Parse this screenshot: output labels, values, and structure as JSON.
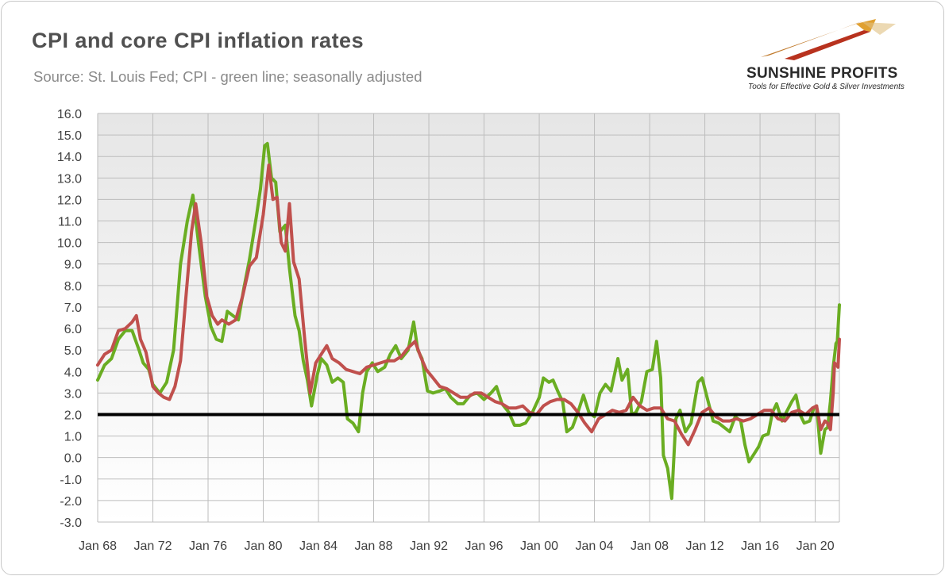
{
  "header": {
    "title": "CPI and core CPI inflation rates",
    "subtitle": "Source: St. Louis Fed; CPI - green line; seasonally adjusted"
  },
  "logo": {
    "name": "SUNSHINE PROFITS",
    "tagline": "Tools for Effective Gold & Silver Investments"
  },
  "chart_data": {
    "type": "line",
    "title": "CPI and core CPI inflation rates",
    "xlabel": "",
    "ylabel": "",
    "xlim": [
      1968.0,
      2021.75
    ],
    "ylim": [
      -3.0,
      16.0
    ],
    "grid": true,
    "legend": "none",
    "x_tick_labels": [
      "Jan 68",
      "Jan 72",
      "Jan 76",
      "Jan 80",
      "Jan 84",
      "Jan 88",
      "Jan 92",
      "Jan 96",
      "Jan 00",
      "Jan 04",
      "Jan 08",
      "Jan 12",
      "Jan 16",
      "Jan 20"
    ],
    "x_tick_values": [
      1968,
      1972,
      1976,
      1980,
      1984,
      1988,
      1992,
      1996,
      2000,
      2004,
      2008,
      2012,
      2016,
      2020
    ],
    "y_tick_labels": [
      "16.0",
      "15.0",
      "14.0",
      "13.0",
      "12.0",
      "11.0",
      "10.0",
      "9.0",
      "8.0",
      "7.0",
      "6.0",
      "5.0",
      "4.0",
      "3.0",
      "2.0",
      "1.0",
      "0.0",
      "-1.0",
      "-2.0",
      "-3.0"
    ],
    "y_tick_values": [
      16,
      15,
      14,
      13,
      12,
      11,
      10,
      9,
      8,
      7,
      6,
      5,
      4,
      3,
      2,
      1,
      0,
      -1,
      -2,
      -3
    ],
    "reference_line": {
      "value": 2.0,
      "color": "#000000"
    },
    "series": [
      {
        "color": "#6aad22",
        "points": [
          [
            1968.0,
            3.6
          ],
          [
            1968.5,
            4.3
          ],
          [
            1969.0,
            4.6
          ],
          [
            1969.5,
            5.5
          ],
          [
            1970.0,
            5.9
          ],
          [
            1970.5,
            5.9
          ],
          [
            1971.0,
            5.0
          ],
          [
            1971.3,
            4.4
          ],
          [
            1971.7,
            4.1
          ],
          [
            1972.0,
            3.4
          ],
          [
            1972.5,
            3.0
          ],
          [
            1973.0,
            3.5
          ],
          [
            1973.5,
            5.0
          ],
          [
            1974.0,
            9.0
          ],
          [
            1974.5,
            11.0
          ],
          [
            1974.9,
            12.2
          ],
          [
            1975.3,
            10.0
          ],
          [
            1975.8,
            7.5
          ],
          [
            1976.2,
            6.1
          ],
          [
            1976.6,
            5.5
          ],
          [
            1977.0,
            5.4
          ],
          [
            1977.4,
            6.8
          ],
          [
            1977.8,
            6.6
          ],
          [
            1978.2,
            6.4
          ],
          [
            1978.6,
            7.9
          ],
          [
            1979.0,
            9.2
          ],
          [
            1979.5,
            11.2
          ],
          [
            1979.8,
            12.5
          ],
          [
            1980.1,
            14.5
          ],
          [
            1980.3,
            14.6
          ],
          [
            1980.6,
            13.0
          ],
          [
            1980.9,
            12.8
          ],
          [
            1981.2,
            10.5
          ],
          [
            1981.6,
            10.8
          ],
          [
            1981.9,
            8.8
          ],
          [
            1982.3,
            6.6
          ],
          [
            1982.6,
            5.9
          ],
          [
            1982.9,
            4.5
          ],
          [
            1983.2,
            3.6
          ],
          [
            1983.5,
            2.4
          ],
          [
            1983.9,
            3.8
          ],
          [
            1984.2,
            4.6
          ],
          [
            1984.6,
            4.3
          ],
          [
            1985.0,
            3.5
          ],
          [
            1985.4,
            3.7
          ],
          [
            1985.8,
            3.5
          ],
          [
            1986.1,
            1.8
          ],
          [
            1986.5,
            1.6
          ],
          [
            1986.9,
            1.2
          ],
          [
            1987.2,
            3.0
          ],
          [
            1987.5,
            4.0
          ],
          [
            1987.9,
            4.4
          ],
          [
            1988.3,
            4.0
          ],
          [
            1988.8,
            4.2
          ],
          [
            1989.2,
            4.8
          ],
          [
            1989.6,
            5.2
          ],
          [
            1990.0,
            4.6
          ],
          [
            1990.5,
            5.0
          ],
          [
            1990.9,
            6.3
          ],
          [
            1991.2,
            5.0
          ],
          [
            1991.5,
            4.6
          ],
          [
            1991.9,
            3.1
          ],
          [
            1992.3,
            3.0
          ],
          [
            1992.8,
            3.1
          ],
          [
            1993.2,
            3.2
          ],
          [
            1993.6,
            2.8
          ],
          [
            1994.1,
            2.5
          ],
          [
            1994.5,
            2.5
          ],
          [
            1995.0,
            2.9
          ],
          [
            1995.5,
            3.0
          ],
          [
            1996.0,
            2.7
          ],
          [
            1996.5,
            3.0
          ],
          [
            1996.9,
            3.3
          ],
          [
            1997.3,
            2.5
          ],
          [
            1997.8,
            2.1
          ],
          [
            1998.2,
            1.5
          ],
          [
            1998.6,
            1.5
          ],
          [
            1999.0,
            1.6
          ],
          [
            1999.5,
            2.1
          ],
          [
            2000.0,
            2.8
          ],
          [
            2000.3,
            3.7
          ],
          [
            2000.7,
            3.5
          ],
          [
            2001.0,
            3.6
          ],
          [
            2001.4,
            3.0
          ],
          [
            2001.7,
            2.6
          ],
          [
            2002.0,
            1.2
          ],
          [
            2002.4,
            1.4
          ],
          [
            2002.8,
            2.1
          ],
          [
            2003.2,
            2.9
          ],
          [
            2003.6,
            2.1
          ],
          [
            2004.0,
            1.9
          ],
          [
            2004.4,
            3.0
          ],
          [
            2004.8,
            3.4
          ],
          [
            2005.2,
            3.1
          ],
          [
            2005.7,
            4.6
          ],
          [
            2006.0,
            3.6
          ],
          [
            2006.4,
            4.1
          ],
          [
            2006.7,
            2.0
          ],
          [
            2007.0,
            2.1
          ],
          [
            2007.4,
            2.6
          ],
          [
            2007.8,
            4.0
          ],
          [
            2008.2,
            4.1
          ],
          [
            2008.5,
            5.4
          ],
          [
            2008.8,
            3.7
          ],
          [
            2009.0,
            0.1
          ],
          [
            2009.3,
            -0.5
          ],
          [
            2009.6,
            -1.9
          ],
          [
            2009.9,
            1.8
          ],
          [
            2010.2,
            2.2
          ],
          [
            2010.6,
            1.2
          ],
          [
            2011.0,
            1.6
          ],
          [
            2011.5,
            3.5
          ],
          [
            2011.8,
            3.7
          ],
          [
            2012.2,
            2.7
          ],
          [
            2012.6,
            1.7
          ],
          [
            2013.0,
            1.6
          ],
          [
            2013.4,
            1.4
          ],
          [
            2013.8,
            1.2
          ],
          [
            2014.2,
            1.9
          ],
          [
            2014.6,
            1.7
          ],
          [
            2014.9,
            0.6
          ],
          [
            2015.2,
            -0.2
          ],
          [
            2015.6,
            0.2
          ],
          [
            2015.9,
            0.5
          ],
          [
            2016.2,
            1.0
          ],
          [
            2016.6,
            1.1
          ],
          [
            2016.9,
            2.1
          ],
          [
            2017.2,
            2.5
          ],
          [
            2017.6,
            1.7
          ],
          [
            2017.9,
            2.1
          ],
          [
            2018.3,
            2.6
          ],
          [
            2018.6,
            2.9
          ],
          [
            2018.9,
            2.0
          ],
          [
            2019.2,
            1.6
          ],
          [
            2019.6,
            1.7
          ],
          [
            2019.9,
            2.3
          ],
          [
            2020.1,
            2.4
          ],
          [
            2020.4,
            0.2
          ],
          [
            2020.7,
            1.3
          ],
          [
            2020.9,
            1.4
          ],
          [
            2021.1,
            2.6
          ],
          [
            2021.3,
            4.2
          ],
          [
            2021.5,
            5.3
          ],
          [
            2021.6,
            5.4
          ],
          [
            2021.75,
            7.1
          ]
        ]
      },
      {
        "color": "#c0504d",
        "points": [
          [
            1968.0,
            4.3
          ],
          [
            1968.5,
            4.8
          ],
          [
            1969.0,
            5.0
          ],
          [
            1969.5,
            5.9
          ],
          [
            1970.0,
            6.0
          ],
          [
            1970.5,
            6.3
          ],
          [
            1970.8,
            6.6
          ],
          [
            1971.1,
            5.5
          ],
          [
            1971.5,
            4.9
          ],
          [
            1972.0,
            3.3
          ],
          [
            1972.4,
            3.0
          ],
          [
            1972.8,
            2.8
          ],
          [
            1973.2,
            2.7
          ],
          [
            1973.6,
            3.3
          ],
          [
            1974.0,
            4.5
          ],
          [
            1974.4,
            7.5
          ],
          [
            1974.8,
            10.5
          ],
          [
            1975.1,
            11.8
          ],
          [
            1975.5,
            10.0
          ],
          [
            1975.9,
            7.5
          ],
          [
            1976.3,
            6.6
          ],
          [
            1976.7,
            6.2
          ],
          [
            1977.0,
            6.4
          ],
          [
            1977.5,
            6.2
          ],
          [
            1978.0,
            6.4
          ],
          [
            1978.5,
            7.5
          ],
          [
            1979.0,
            8.9
          ],
          [
            1979.5,
            9.3
          ],
          [
            1980.0,
            11.3
          ],
          [
            1980.4,
            13.6
          ],
          [
            1980.7,
            12.0
          ],
          [
            1981.0,
            12.1
          ],
          [
            1981.3,
            10.0
          ],
          [
            1981.6,
            9.6
          ],
          [
            1981.9,
            11.8
          ],
          [
            1982.2,
            9.1
          ],
          [
            1982.6,
            8.3
          ],
          [
            1983.0,
            5.5
          ],
          [
            1983.4,
            3.0
          ],
          [
            1983.8,
            4.4
          ],
          [
            1984.2,
            4.8
          ],
          [
            1984.6,
            5.2
          ],
          [
            1985.0,
            4.6
          ],
          [
            1985.5,
            4.4
          ],
          [
            1986.0,
            4.1
          ],
          [
            1986.5,
            4.0
          ],
          [
            1987.0,
            3.9
          ],
          [
            1987.5,
            4.2
          ],
          [
            1988.0,
            4.3
          ],
          [
            1988.5,
            4.4
          ],
          [
            1989.0,
            4.5
          ],
          [
            1989.5,
            4.5
          ],
          [
            1990.0,
            4.7
          ],
          [
            1990.5,
            5.1
          ],
          [
            1991.0,
            5.4
          ],
          [
            1991.4,
            4.7
          ],
          [
            1991.8,
            4.1
          ],
          [
            1992.3,
            3.7
          ],
          [
            1992.8,
            3.3
          ],
          [
            1993.3,
            3.2
          ],
          [
            1993.8,
            3.0
          ],
          [
            1994.3,
            2.8
          ],
          [
            1994.8,
            2.8
          ],
          [
            1995.3,
            3.0
          ],
          [
            1995.8,
            3.0
          ],
          [
            1996.3,
            2.8
          ],
          [
            1996.8,
            2.6
          ],
          [
            1997.3,
            2.5
          ],
          [
            1997.8,
            2.3
          ],
          [
            1998.3,
            2.3
          ],
          [
            1998.8,
            2.4
          ],
          [
            1999.3,
            2.1
          ],
          [
            1999.8,
            2.0
          ],
          [
            2000.3,
            2.4
          ],
          [
            2000.8,
            2.6
          ],
          [
            2001.3,
            2.7
          ],
          [
            2001.8,
            2.7
          ],
          [
            2002.3,
            2.5
          ],
          [
            2002.8,
            2.1
          ],
          [
            2003.3,
            1.6
          ],
          [
            2003.8,
            1.2
          ],
          [
            2004.3,
            1.8
          ],
          [
            2004.8,
            2.0
          ],
          [
            2005.3,
            2.2
          ],
          [
            2005.8,
            2.1
          ],
          [
            2006.3,
            2.2
          ],
          [
            2006.8,
            2.8
          ],
          [
            2007.3,
            2.4
          ],
          [
            2007.8,
            2.2
          ],
          [
            2008.3,
            2.3
          ],
          [
            2008.8,
            2.3
          ],
          [
            2009.3,
            1.8
          ],
          [
            2009.8,
            1.7
          ],
          [
            2010.3,
            1.1
          ],
          [
            2010.8,
            0.6
          ],
          [
            2011.3,
            1.3
          ],
          [
            2011.8,
            2.1
          ],
          [
            2012.3,
            2.3
          ],
          [
            2012.8,
            1.9
          ],
          [
            2013.3,
            1.7
          ],
          [
            2013.8,
            1.7
          ],
          [
            2014.3,
            1.8
          ],
          [
            2014.8,
            1.7
          ],
          [
            2015.3,
            1.8
          ],
          [
            2015.8,
            2.0
          ],
          [
            2016.3,
            2.2
          ],
          [
            2016.8,
            2.2
          ],
          [
            2017.3,
            1.8
          ],
          [
            2017.8,
            1.7
          ],
          [
            2018.3,
            2.1
          ],
          [
            2018.8,
            2.2
          ],
          [
            2019.3,
            2.0
          ],
          [
            2019.8,
            2.3
          ],
          [
            2020.1,
            2.4
          ],
          [
            2020.4,
            1.3
          ],
          [
            2020.7,
            1.7
          ],
          [
            2020.9,
            1.6
          ],
          [
            2021.1,
            1.3
          ],
          [
            2021.3,
            3.0
          ],
          [
            2021.4,
            4.4
          ],
          [
            2021.55,
            4.3
          ],
          [
            2021.65,
            4.2
          ],
          [
            2021.75,
            5.5
          ]
        ]
      }
    ]
  }
}
